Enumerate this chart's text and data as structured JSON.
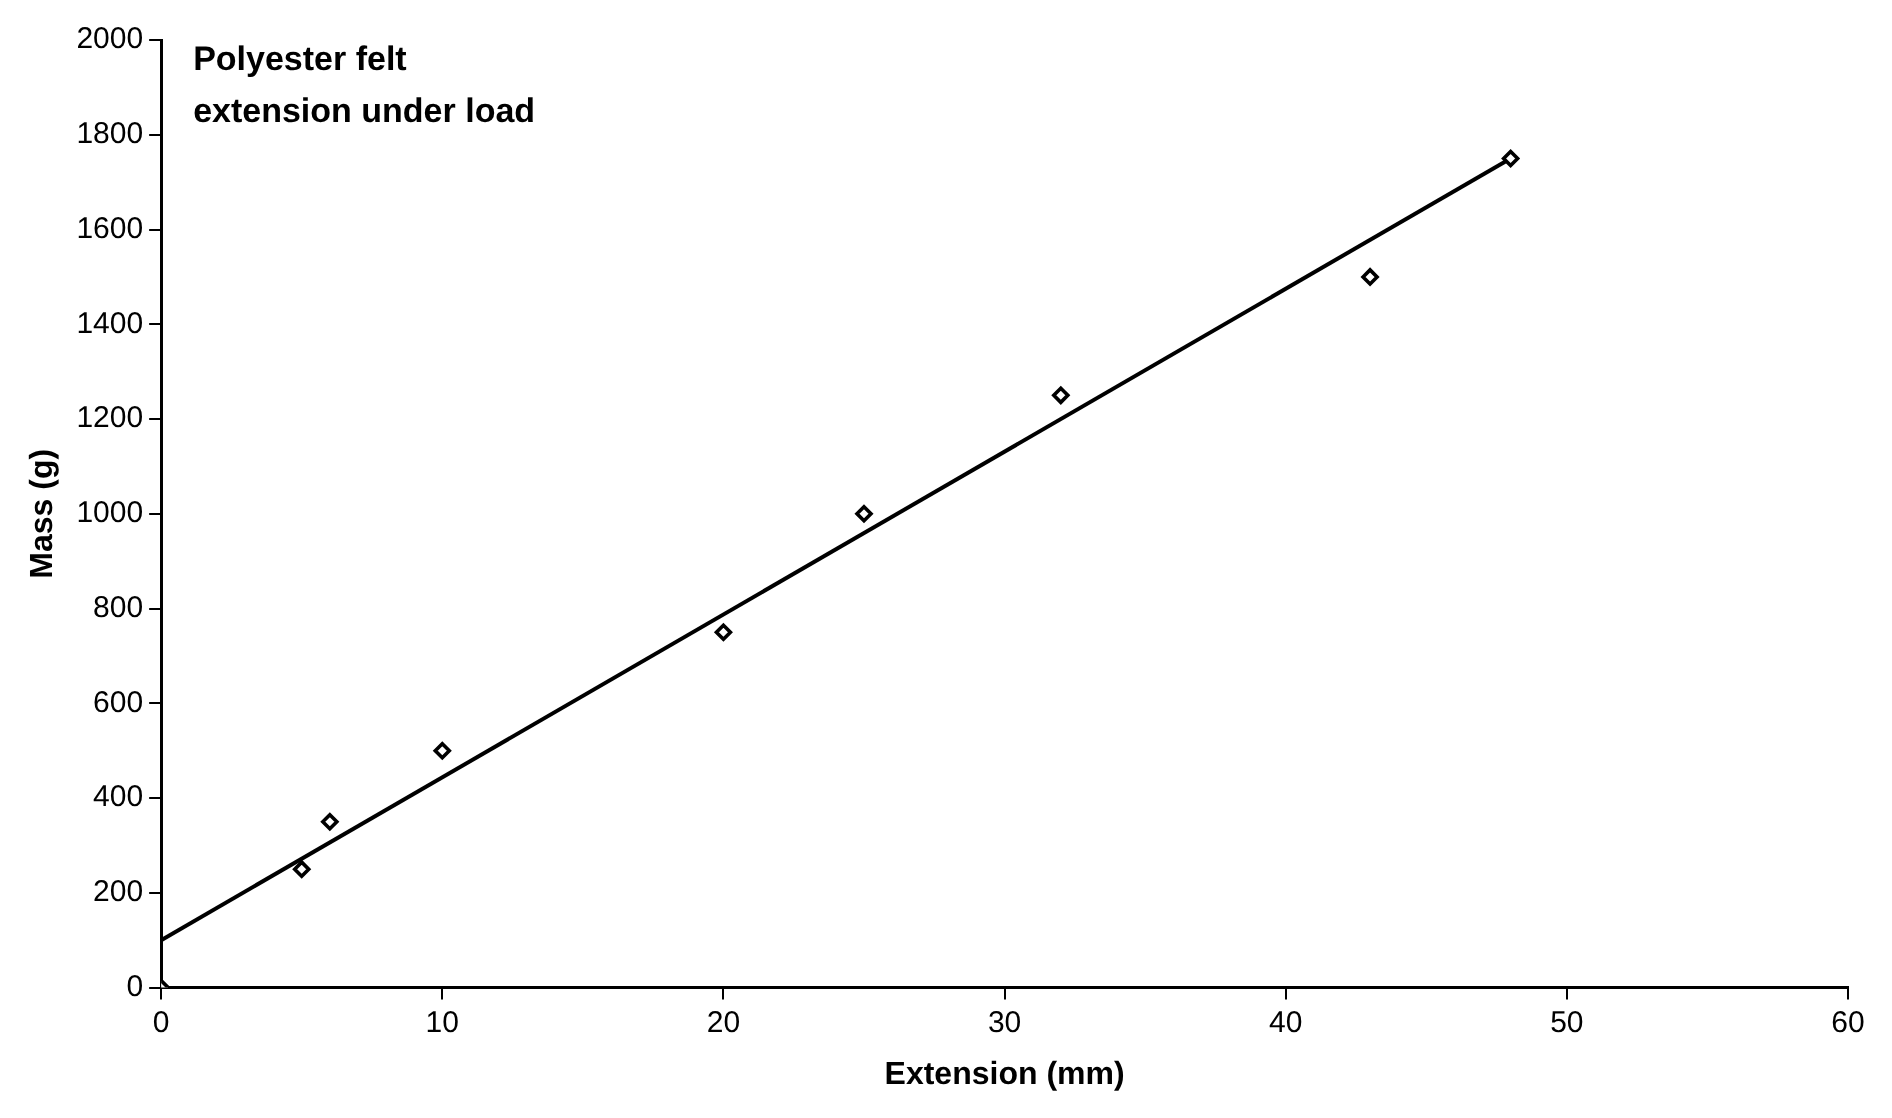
{
  "chart_data": {
    "type": "scatter",
    "title": "Polyester felt\nextension under load",
    "xlabel": "Extension (mm)",
    "ylabel": "Mass (g)",
    "x": [
      0,
      5,
      6,
      10,
      20,
      25,
      32,
      43,
      48
    ],
    "series": [
      {
        "color": "#000000",
        "marker": "diamond",
        "values": [
          0,
          250,
          350,
          500,
          750,
          1000,
          1250,
          1500,
          1750
        ]
      },
      {
        "type": "line",
        "color": "#000000",
        "marker": "none",
        "x": [
          0,
          48
        ],
        "values": [
          100,
          1750
        ]
      }
    ],
    "xlim": [
      0,
      60
    ],
    "xticks": [
      0,
      10,
      20,
      30,
      40,
      50,
      60
    ],
    "ylim": [
      0,
      2000
    ],
    "yticks": [
      0,
      200,
      400,
      600,
      800,
      1000,
      1200,
      1400,
      1600,
      1800,
      2000
    ],
    "grid": false,
    "legend": false
  }
}
